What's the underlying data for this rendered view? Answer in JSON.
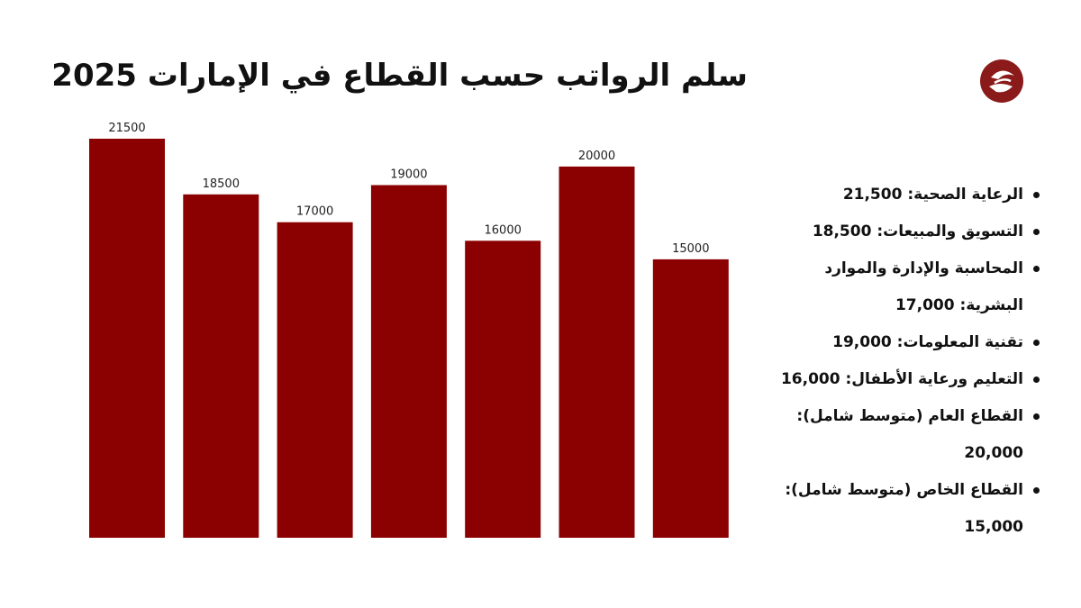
{
  "header": {
    "title": "سلم الرواتب حسب القطاع في الإمارات 2025"
  },
  "logo": {
    "icon": "site-logo-icon",
    "color": "#8b1a1a"
  },
  "chart_data": {
    "type": "bar",
    "categories": [
      "الرعاية الصحية",
      "التسويق والمبيعات",
      "المحاسبة والإدارة والموارد البشرية",
      "تقنية المعلومات",
      "التعليم ورعاية الأطفال",
      "القطاع العام (متوسط شامل)",
      "القطاع الخاص (متوسط شامل)"
    ],
    "values": [
      21500,
      18500,
      17000,
      19000,
      16000,
      20000,
      15000
    ],
    "data_labels": [
      "21500",
      "18500",
      "17000",
      "19000",
      "16000",
      "20000",
      "15000"
    ],
    "ylim": [
      0,
      21500
    ],
    "bar_color": "#8b0000",
    "grid": false,
    "axes_visible": false
  },
  "legend": {
    "items": [
      "الرعاية الصحية: 21,500",
      "التسويق والمبيعات: 18,500",
      "المحاسبة والإدارة والموارد البشرية: 17,000",
      "تقنية المعلومات: 19,000",
      "التعليم ورعاية الأطفال: 16,000",
      "القطاع العام (متوسط شامل): 20,000",
      "القطاع الخاص (متوسط شامل): 15,000"
    ]
  }
}
